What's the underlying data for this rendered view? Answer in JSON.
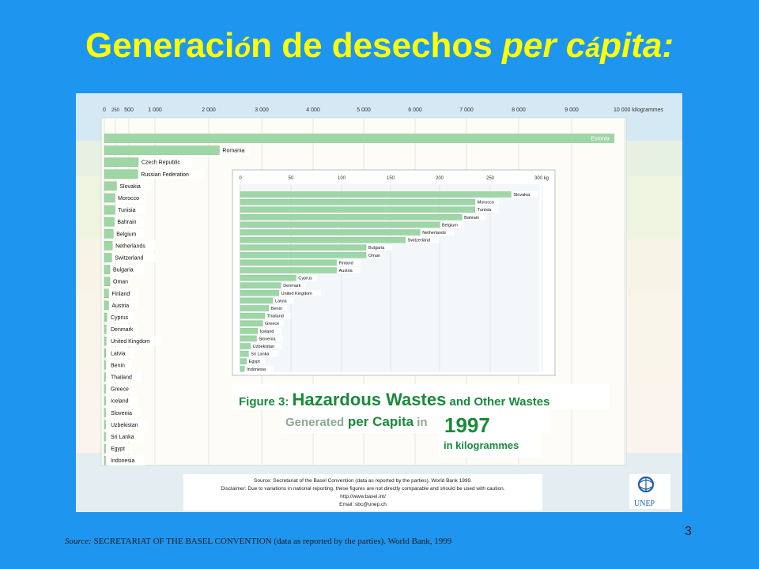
{
  "slide": {
    "title_part1": "Generaci",
    "title_accent1": "ó",
    "title_part2": "n de desechos ",
    "title_italic1": "per c",
    "title_accent2": "á",
    "title_italic2": "pita:",
    "slide_number": "3",
    "source_label": "Source:",
    "source_text": " SECRETARIAT OF THE BASEL CONVENTION  (data as reported by the parties). World Bank, 1999"
  },
  "figure": {
    "line1_a": "Figure 3: ",
    "line1_b": "Hazardous Wastes",
    "line1_c": " and Other Wastes",
    "line2_a": "Generated",
    "line2_b": " per Capita",
    "line2_c": " in ",
    "year": "1997",
    "line3": "in kilogrammes",
    "source_lines": [
      "Source: Secretariat of the Basel Convention (data as reported by the parties), World Bank 1999.",
      "Disclaimer: Due to variations in national reporting, these figures are not directly comparable and should be used with caution.",
      "http://www.basel.int/",
      "Email: sbc@unep.ch"
    ],
    "logo_text": "UNEP",
    "colors": {
      "bar": "#9ed6a6",
      "bar_edge": "#6cb577",
      "title_green": "#1a8a3a",
      "title_gray": "#8aaa92",
      "label_bg": "#ffffff",
      "panel": "#dceef6"
    }
  },
  "chart_data": [
    {
      "type": "bar",
      "orientation": "horizontal",
      "unit": "kilogrammes",
      "xlim": [
        0,
        10000
      ],
      "ticks": [
        0,
        250,
        500,
        1000,
        2000,
        3000,
        4000,
        5000,
        6000,
        7000,
        8000,
        9000,
        10000
      ],
      "tick_labels": [
        "0",
        "250",
        "500",
        "1 000",
        "2 000",
        "3 000",
        "4 000",
        "5 000",
        "6 000",
        "7 000",
        "8 000",
        "9 000",
        "10 000 kilogrammes"
      ],
      "categories": [
        "Estonia",
        "Romania",
        "Czech Republic",
        "Russian Federation",
        "Slovakia",
        "Morocco",
        "Tunisia",
        "Bahrain",
        "Belgium",
        "Netherlands",
        "Switzerland",
        "Bulgaria",
        "Oman",
        "Finland",
        "Austria",
        "Cyprus",
        "Denmark",
        "United Kingdom",
        "Latvia",
        "Benin",
        "Thailand",
        "Greece",
        "Iceland",
        "Slovenia",
        "Uzbekistan",
        "Sri Lanka",
        "Egypt",
        "Indonesia"
      ],
      "values": [
        9800,
        2200,
        680,
        670,
        270,
        235,
        235,
        222,
        200,
        180,
        165,
        125,
        125,
        95,
        95,
        55,
        40,
        38,
        32,
        28,
        24,
        22,
        17,
        16,
        10,
        8,
        6,
        4
      ]
    },
    {
      "type": "bar",
      "orientation": "horizontal",
      "unit": "kg",
      "xlim": [
        0,
        300
      ],
      "ticks": [
        0,
        50,
        100,
        150,
        200,
        250,
        300
      ],
      "tick_labels": [
        "0",
        "50",
        "100",
        "150",
        "200",
        "250",
        "300 kg"
      ],
      "categories": [
        "Slovakia",
        "Morocco",
        "Tunisia",
        "Bahrain",
        "Belgium",
        "Netherlands",
        "Switzerland",
        "Bulgaria",
        "Oman",
        "Finland",
        "Austria",
        "Cyprus",
        "Denmark",
        "United Kingdom",
        "Latvia",
        "Benin",
        "Thailand",
        "Greece",
        "Iceland",
        "Slovenia",
        "Uzbekistan",
        "Sri Lanka",
        "Egypt",
        "Indonesia"
      ],
      "values": [
        270,
        235,
        235,
        222,
        200,
        180,
        165,
        125,
        125,
        95,
        95,
        55,
        40,
        38,
        32,
        28,
        24,
        22,
        17,
        16,
        10,
        8,
        6,
        4
      ]
    }
  ]
}
